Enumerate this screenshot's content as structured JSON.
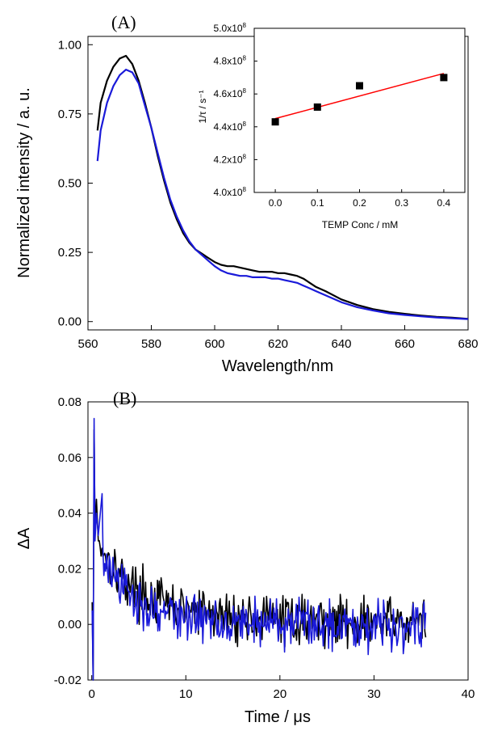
{
  "chart_data": [
    {
      "panel": "(A)",
      "type": "line",
      "xlabel": "Wavelength/nm",
      "ylabel": "Normalized intensity / a. u.",
      "xlim": [
        560,
        680
      ],
      "ylim": [
        -0.03,
        1.03
      ],
      "xticks": [
        560,
        580,
        600,
        620,
        640,
        660,
        680
      ],
      "yticks": [
        0.0,
        0.25,
        0.5,
        0.75,
        1.0
      ],
      "ytick_labels": [
        "0.00",
        "0.25",
        "0.50",
        "0.75",
        "1.00"
      ],
      "series": [
        {
          "color": "#000000",
          "x": [
            563,
            564,
            566,
            568,
            570,
            572,
            574,
            576,
            578,
            580,
            582,
            584,
            586,
            588,
            590,
            592,
            594,
            596,
            598,
            600,
            602,
            604,
            606,
            608,
            610,
            612,
            614,
            616,
            618,
            620,
            622,
            624,
            626,
            628,
            630,
            632,
            635,
            640,
            645,
            650,
            655,
            660,
            665,
            670,
            675,
            680
          ],
          "y": [
            0.69,
            0.79,
            0.87,
            0.92,
            0.95,
            0.96,
            0.93,
            0.87,
            0.79,
            0.7,
            0.6,
            0.51,
            0.43,
            0.37,
            0.32,
            0.285,
            0.26,
            0.245,
            0.23,
            0.215,
            0.205,
            0.2,
            0.2,
            0.195,
            0.19,
            0.185,
            0.18,
            0.18,
            0.18,
            0.175,
            0.175,
            0.17,
            0.165,
            0.155,
            0.14,
            0.125,
            0.11,
            0.08,
            0.06,
            0.045,
            0.035,
            0.028,
            0.022,
            0.017,
            0.014,
            0.01
          ]
        },
        {
          "color": "#1a1ad9",
          "x": [
            563,
            564,
            566,
            568,
            570,
            572,
            574,
            576,
            578,
            580,
            582,
            584,
            586,
            588,
            590,
            592,
            594,
            596,
            598,
            600,
            602,
            604,
            606,
            608,
            610,
            612,
            614,
            616,
            618,
            620,
            622,
            624,
            626,
            628,
            630,
            632,
            635,
            640,
            645,
            650,
            655,
            660,
            665,
            670,
            675,
            680
          ],
          "y": [
            0.58,
            0.69,
            0.79,
            0.85,
            0.89,
            0.91,
            0.9,
            0.86,
            0.78,
            0.7,
            0.61,
            0.52,
            0.44,
            0.38,
            0.33,
            0.29,
            0.26,
            0.24,
            0.22,
            0.2,
            0.185,
            0.175,
            0.17,
            0.165,
            0.165,
            0.16,
            0.16,
            0.16,
            0.155,
            0.155,
            0.15,
            0.145,
            0.14,
            0.13,
            0.12,
            0.11,
            0.095,
            0.07,
            0.052,
            0.04,
            0.03,
            0.024,
            0.019,
            0.015,
            0.012,
            0.009
          ]
        }
      ]
    },
    {
      "panel": "inset",
      "type": "scatter",
      "xlabel": "TEMP Conc / mM",
      "ylabel": "1/τ / s⁻¹",
      "xlim": [
        -0.05,
        0.45
      ],
      "ylim": [
        400000000.0,
        500000000.0
      ],
      "xticks": [
        0.0,
        0.1,
        0.2,
        0.3,
        0.4
      ],
      "xtick_labels": [
        "0.0",
        "0.1",
        "0.2",
        "0.3",
        "0.4"
      ],
      "yticks": [
        400000000.0,
        420000000.0,
        440000000.0,
        460000000.0,
        480000000.0,
        500000000.0
      ],
      "ytick_labels": [
        "4.0x10",
        "4.2x10",
        "4.4x10",
        "4.6x10",
        "4.8x10",
        "5.0x10"
      ],
      "ytick_exponent": "8",
      "points": {
        "x": [
          0.0,
          0.1,
          0.2,
          0.4
        ],
        "y": [
          443000000.0,
          452000000.0,
          465000000.0,
          470000000.0
        ]
      },
      "fit": {
        "x": [
          0.0,
          0.4
        ],
        "y": [
          445000000.0,
          472500000.0
        ],
        "color": "#ff0000"
      }
    },
    {
      "panel": "(B)",
      "type": "line",
      "xlabel": "Time / μs",
      "ylabel": "ΔA",
      "xlim": [
        -0.4,
        40
      ],
      "ylim": [
        -0.02,
        0.08
      ],
      "xticks": [
        0,
        10,
        20,
        30,
        40
      ],
      "yticks": [
        -0.02,
        0.0,
        0.02,
        0.04,
        0.06,
        0.08
      ],
      "ytick_labels": [
        "-0.02",
        "0.00",
        "0.02",
        "0.04",
        "0.06",
        "0.08"
      ],
      "series": [
        {
          "color": "#000000",
          "x_start": 0,
          "x_end": 35.5,
          "spike": {
            "x": [
              0.05,
              0.15,
              0.25,
              0.35,
              0.5,
              0.7
            ],
            "y": [
              0.008,
              -0.02,
              0.07,
              0.035,
              0.045,
              0.03
            ]
          },
          "decay": {
            "a1": 0.024,
            "tau1": 3.0,
            "a2": 0.012,
            "tau2": 9.0,
            "offset": 0.0005
          },
          "noise_amplitude": 0.0075
        },
        {
          "color": "#1a1ad9",
          "x_start": 0,
          "x_end": 35.5,
          "spike": {
            "x": [
              0.05,
              0.15,
              0.25,
              0.35,
              0.5,
              0.7,
              1.1
            ],
            "y": [
              0.005,
              -0.02,
              0.074,
              0.03,
              0.04,
              0.032,
              0.047
            ]
          },
          "decay": {
            "a1": 0.026,
            "tau1": 2.6,
            "a2": 0.008,
            "tau2": 8.0,
            "offset": 0.0
          },
          "noise_amplitude": 0.0075
        }
      ]
    }
  ]
}
